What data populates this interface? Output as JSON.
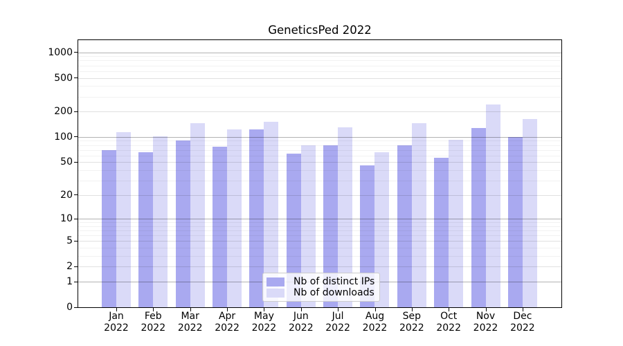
{
  "chart_data": {
    "type": "bar",
    "title": "GeneticsPed 2022",
    "xlabel": "",
    "ylabel": "",
    "scale": "log1p",
    "ylim": [
      0,
      1390
    ],
    "grid": true,
    "legend_position": "inside-bottom-center",
    "categories": [
      "Jan",
      "Feb",
      "Mar",
      "Apr",
      "May",
      "Jun",
      "Jul",
      "Aug",
      "Sep",
      "Oct",
      "Nov",
      "Dec"
    ],
    "x_tick_year": "2022",
    "y_ticks": [
      1000,
      500,
      200,
      100,
      50,
      20,
      10,
      5,
      2,
      1,
      0
    ],
    "series": [
      {
        "name": "Nb of distinct IPs",
        "color": "#a9a9f0",
        "values": [
          70,
          66,
          91,
          76,
          122,
          63,
          79,
          46,
          80,
          57,
          128,
          100
        ]
      },
      {
        "name": "Nb of downloads",
        "color": "#dadaf8",
        "values": [
          113,
          102,
          145,
          124,
          150,
          80,
          130,
          66,
          147,
          93,
          243,
          164
        ]
      }
    ]
  }
}
